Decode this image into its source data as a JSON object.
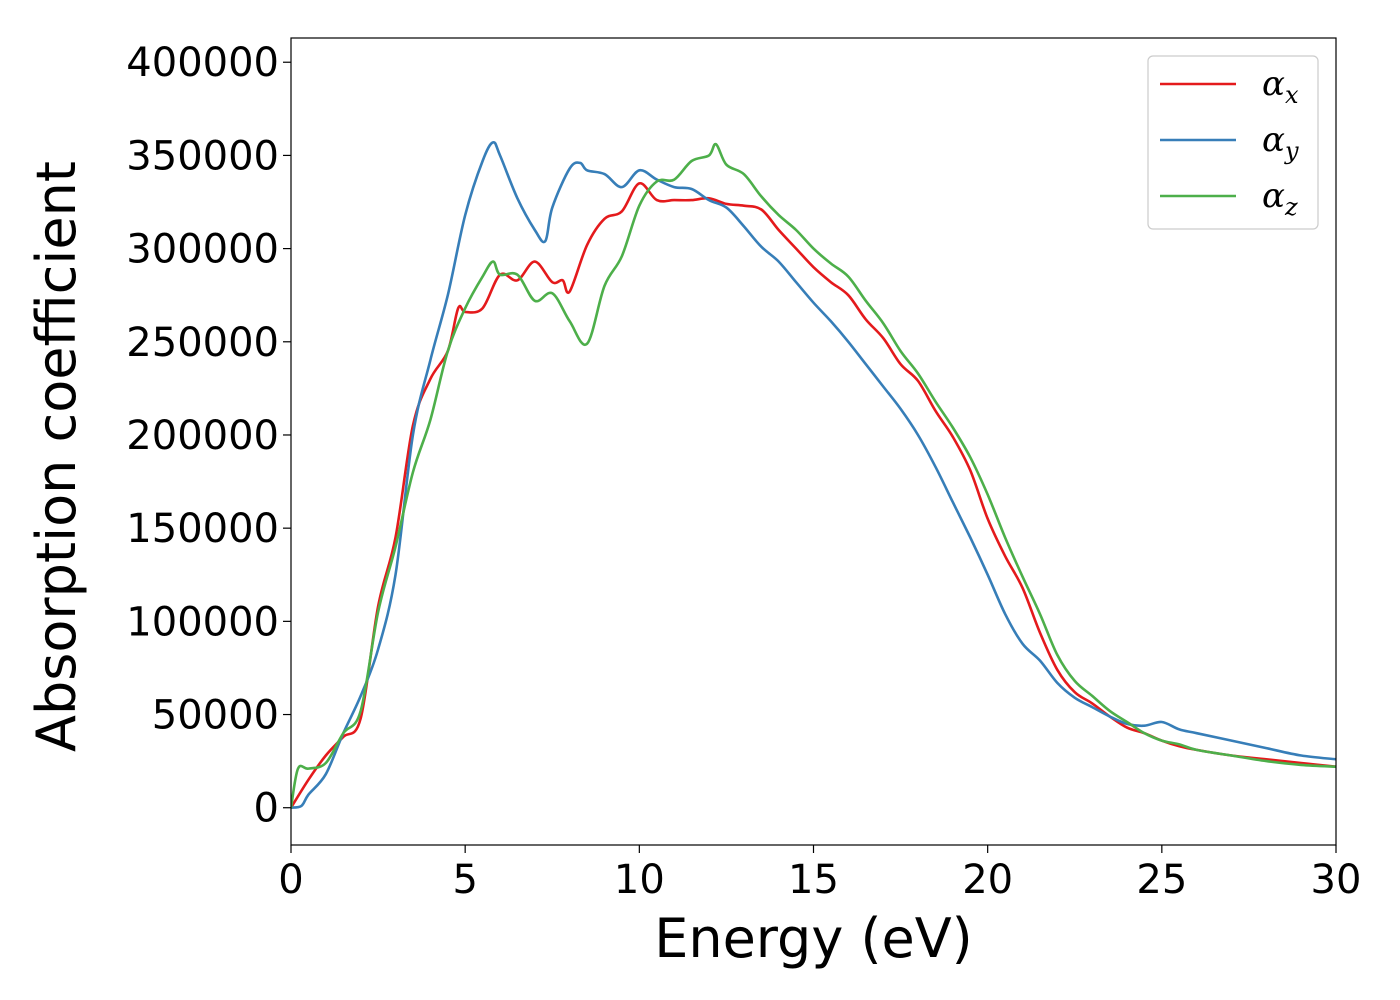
{
  "chart_data": {
    "type": "line",
    "title": "",
    "xlabel": "Energy (eV)",
    "ylabel": "Absorption coefficient",
    "xlim": [
      0,
      30
    ],
    "ylim": [
      -20000,
      413000
    ],
    "xticks": [
      0,
      5,
      10,
      15,
      20,
      25,
      30
    ],
    "yticks": [
      0,
      50000,
      100000,
      150000,
      200000,
      250000,
      300000,
      350000,
      400000
    ],
    "grid": false,
    "legend_position": "top-right",
    "series": [
      {
        "name": "α",
        "subscript": "x",
        "color": "#e41a1c",
        "x": [
          0,
          0.5,
          1,
          1.5,
          2,
          2.5,
          3,
          3.5,
          4,
          4.5,
          4.8,
          5,
          5.5,
          6,
          6.5,
          7,
          7.5,
          7.8,
          8,
          8.5,
          9,
          9.5,
          10,
          10.5,
          11,
          11.5,
          12,
          12.5,
          13,
          13.5,
          14,
          14.5,
          15,
          15.5,
          16,
          16.5,
          17,
          17.5,
          18,
          18.5,
          19,
          19.5,
          20,
          20.5,
          21,
          21.5,
          22,
          22.5,
          23,
          23.5,
          24,
          24.5,
          25,
          25.5,
          26,
          27,
          28,
          29,
          30
        ],
        "y": [
          0,
          15000,
          28000,
          38000,
          48000,
          108000,
          145000,
          205000,
          230000,
          245000,
          268000,
          266000,
          268000,
          286000,
          283000,
          293000,
          282000,
          283000,
          277000,
          302000,
          316000,
          320000,
          335000,
          326000,
          326000,
          326000,
          327000,
          324000,
          323000,
          321000,
          310000,
          300000,
          290000,
          282000,
          275000,
          262000,
          252000,
          238000,
          229000,
          213000,
          199000,
          181000,
          155000,
          135000,
          118000,
          94000,
          74000,
          62000,
          56000,
          49000,
          43000,
          40000,
          36000,
          33000,
          31000,
          28000,
          26000,
          24000,
          22000
        ]
      },
      {
        "name": "α",
        "subscript": "y",
        "color": "#377eb8",
        "x": [
          0,
          0.3,
          0.5,
          1,
          1.5,
          2,
          2.5,
          3,
          3.5,
          4,
          4.5,
          5,
          5.5,
          5.8,
          6,
          6.5,
          7,
          7.3,
          7.5,
          8,
          8.3,
          8.5,
          9,
          9.5,
          10,
          10.5,
          11,
          11.5,
          12,
          12.5,
          13,
          13.5,
          14,
          14.5,
          15,
          15.5,
          16,
          16.5,
          17,
          17.5,
          18,
          18.5,
          19,
          19.5,
          20,
          20.5,
          21,
          21.5,
          22,
          22.5,
          23,
          23.5,
          24,
          24.5,
          25,
          25.5,
          26,
          27,
          28,
          29,
          30
        ],
        "y": [
          0,
          1000,
          7000,
          18000,
          40000,
          60000,
          85000,
          125000,
          200000,
          240000,
          275000,
          318000,
          347000,
          357000,
          350000,
          327000,
          310000,
          304000,
          322000,
          343000,
          346000,
          342000,
          340000,
          333000,
          342000,
          337000,
          333000,
          332000,
          326000,
          322000,
          312000,
          301000,
          293000,
          282000,
          271000,
          261000,
          250000,
          238000,
          226000,
          214000,
          200000,
          183000,
          164000,
          145000,
          125000,
          104000,
          88000,
          79000,
          67000,
          59000,
          54000,
          49000,
          45000,
          44000,
          46000,
          42000,
          40000,
          36000,
          32000,
          28000,
          26000
        ]
      },
      {
        "name": "α",
        "subscript": "z",
        "color": "#4daf4a",
        "x": [
          0,
          0.2,
          0.5,
          1,
          1.5,
          2,
          2.5,
          3,
          3.5,
          4,
          4.5,
          5,
          5.5,
          5.8,
          6,
          6.5,
          7,
          7.5,
          8,
          8.5,
          9,
          9.5,
          10,
          10.5,
          11,
          11.5,
          12,
          12.2,
          12.5,
          13,
          13.5,
          14,
          14.5,
          15,
          15.5,
          16,
          16.5,
          17,
          17.5,
          18,
          18.5,
          19,
          19.5,
          20,
          20.5,
          21,
          21.5,
          22,
          22.5,
          23,
          23.5,
          24,
          24.5,
          25,
          25.5,
          26,
          27,
          28,
          29,
          30
        ],
        "y": [
          0,
          21000,
          21000,
          24000,
          40000,
          52000,
          105000,
          140000,
          180000,
          208000,
          245000,
          268000,
          285000,
          293000,
          286000,
          286000,
          272000,
          276000,
          261000,
          249000,
          280000,
          296000,
          323000,
          336000,
          337000,
          347000,
          350000,
          356000,
          345000,
          340000,
          328000,
          318000,
          310000,
          300000,
          292000,
          285000,
          272000,
          260000,
          245000,
          233000,
          218000,
          204000,
          188000,
          168000,
          145000,
          124000,
          104000,
          82000,
          68000,
          60000,
          52000,
          46000,
          40000,
          36000,
          34000,
          31000,
          28000,
          25000,
          23000,
          22000
        ]
      }
    ]
  }
}
